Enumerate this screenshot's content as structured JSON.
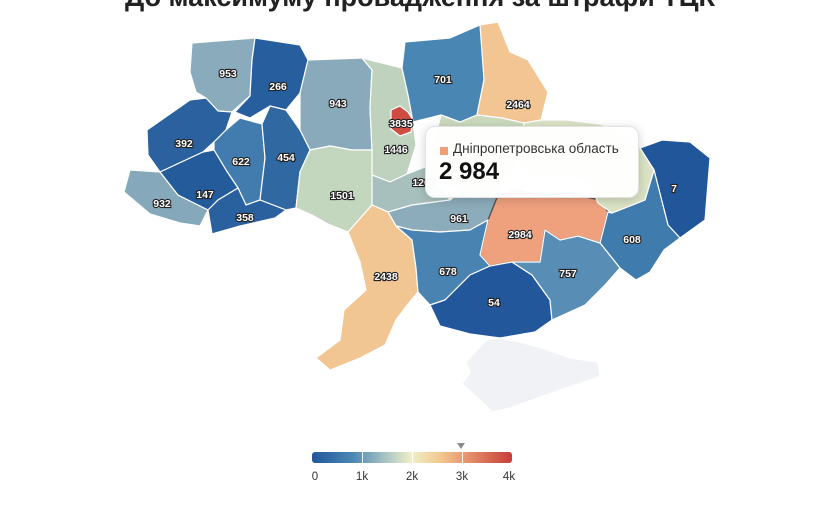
{
  "title": "До максимуму провадження за штрафи ТЦК",
  "tooltip": {
    "region": "Дніпропетровська область",
    "value": "2 984",
    "swatch_color": "#ef9d7a"
  },
  "legend": {
    "min": 0,
    "max": 4000,
    "ticks": [
      "0",
      "1k",
      "2k",
      "3k",
      "4k"
    ],
    "marker_value": 2984
  },
  "regions": [
    {
      "key": "volyn",
      "name": "Волинська область",
      "value": 953
    },
    {
      "key": "rivne",
      "name": "Рівненська область",
      "value": 266
    },
    {
      "key": "zhytomyr",
      "name": "Житомирська область",
      "value": 943
    },
    {
      "key": "kyiv_city",
      "name": "Київ",
      "value": 3835
    },
    {
      "key": "kyiv_obl",
      "name": "Київська область",
      "value": 1446
    },
    {
      "key": "chernihiv",
      "name": "Чернігівська область",
      "value": 701
    },
    {
      "key": "sumy",
      "name": "Сумська область",
      "value": 2464
    },
    {
      "key": "lviv",
      "name": "Львівська область",
      "value": 392
    },
    {
      "key": "ternopil",
      "name": "Тернопільська область",
      "value": 622
    },
    {
      "key": "khmelnytskyi",
      "name": "Хмельницька область",
      "value": 454
    },
    {
      "key": "vinnytsia",
      "name": "Вінницька область",
      "value": 1501
    },
    {
      "key": "cherkasy",
      "name": "Черкаська область",
      "value": 1200
    },
    {
      "key": "zakarpattia",
      "name": "Закарпатська область",
      "value": 932
    },
    {
      "key": "ivano_frankivsk",
      "name": "Івано-Франківська область",
      "value": 147
    },
    {
      "key": "chernivtsi",
      "name": "Чернівецька область",
      "value": 358
    },
    {
      "key": "kirovohrad",
      "name": "Кіровоградська область",
      "value": 961
    },
    {
      "key": "dnipro",
      "name": "Дніпропетровська область",
      "value": 2984
    },
    {
      "key": "luhansk",
      "name": "Луганська область",
      "value": 7
    },
    {
      "key": "donetsk",
      "name": "Донецька область",
      "value": 608
    },
    {
      "key": "odesa",
      "name": "Одеська область",
      "value": 2438
    },
    {
      "key": "mykolaiv",
      "name": "Миколаївська область",
      "value": 678
    },
    {
      "key": "kherson",
      "name": "Херсонська область",
      "value": 54
    },
    {
      "key": "zaporizhzhia",
      "name": "Запорізька область",
      "value": 757
    },
    {
      "key": "poltava",
      "name": "Полтавська область",
      "value": null
    },
    {
      "key": "kharkiv",
      "name": "Харківська область",
      "value": null
    },
    {
      "key": "crimea",
      "name": "АР Крим",
      "value": null
    }
  ]
}
